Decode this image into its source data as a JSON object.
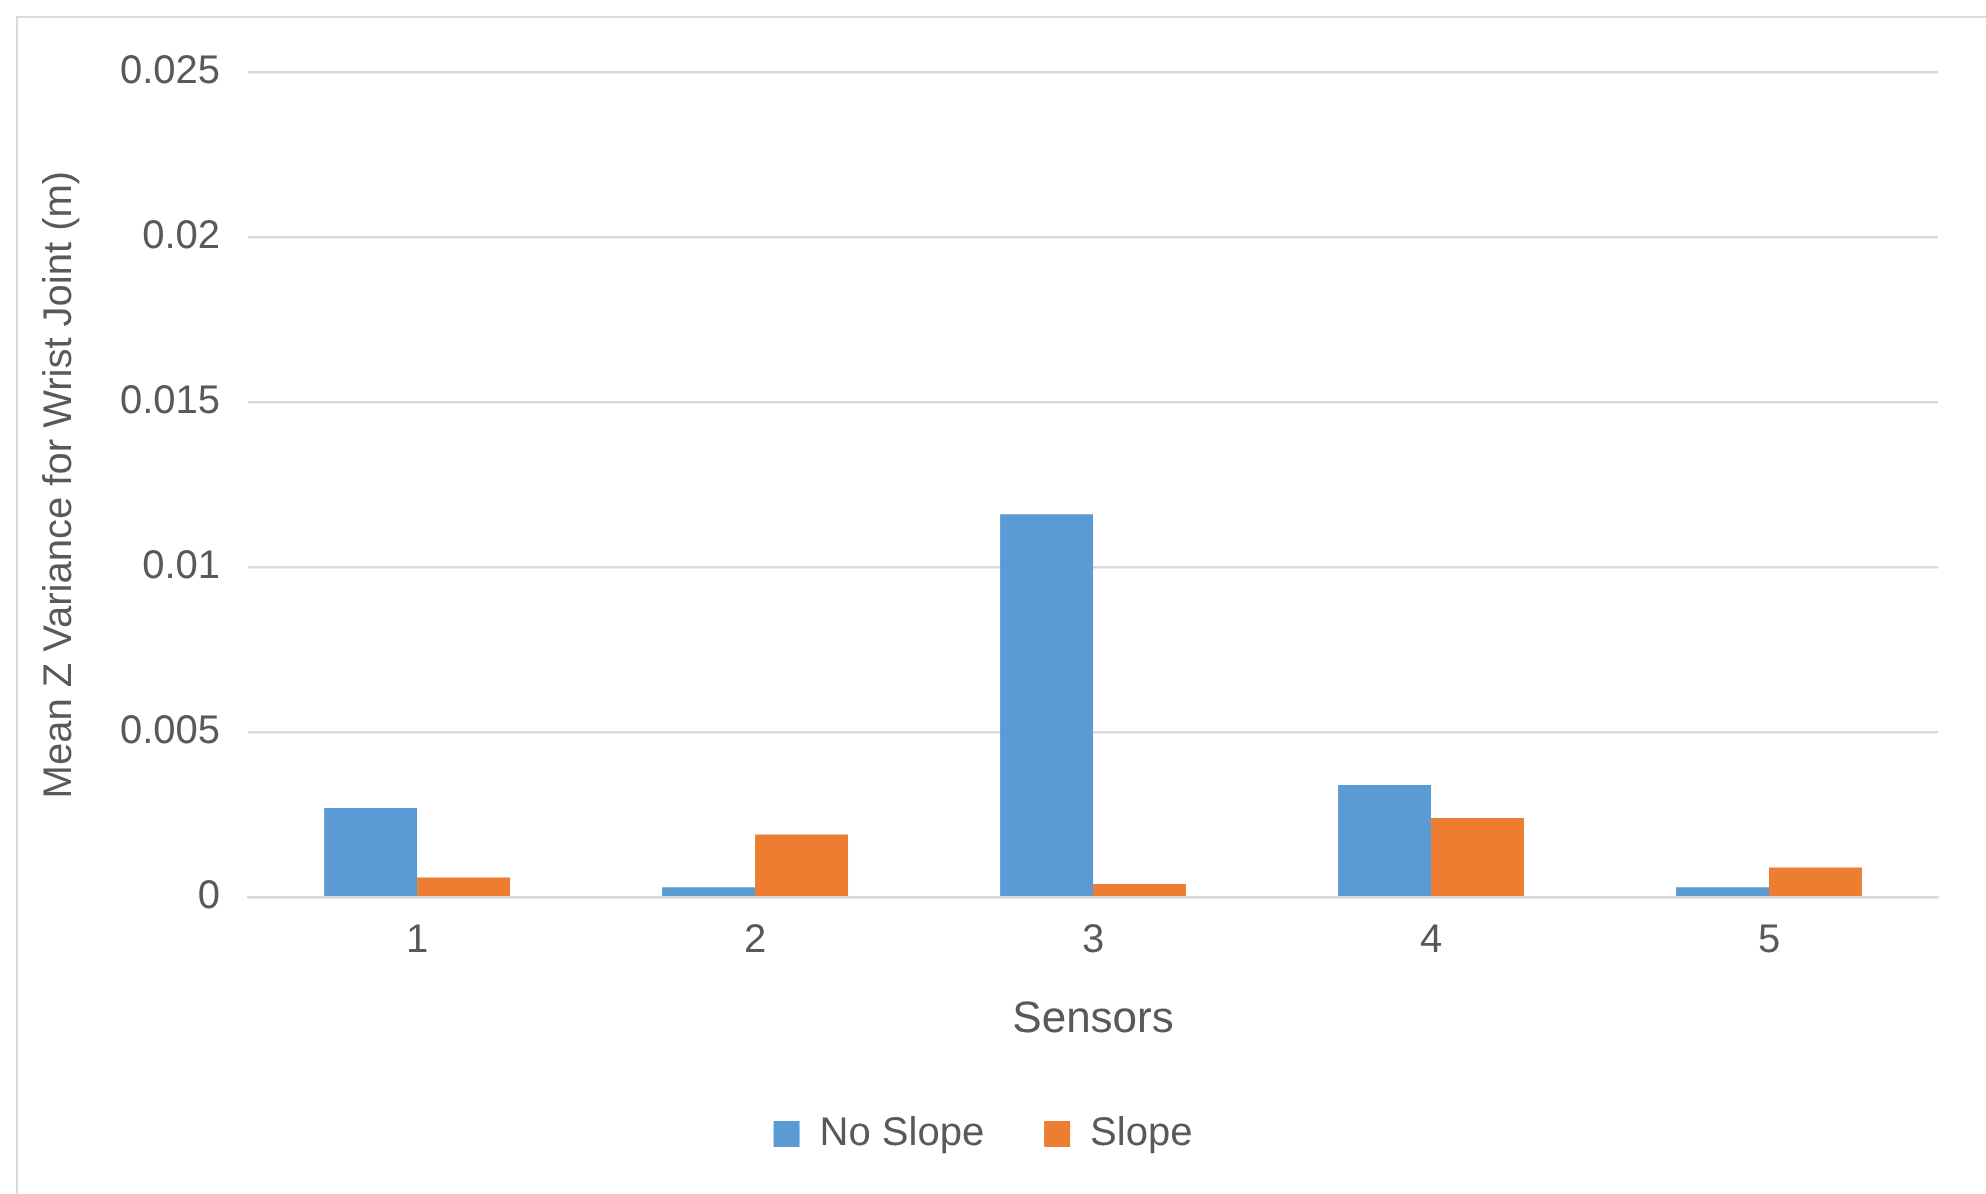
{
  "chart_data": {
    "type": "bar",
    "xlabel": "Sensors",
    "ylabel": "Mean Z Variance for Wrist Joint (m)",
    "categories": [
      "1",
      "2",
      "3",
      "4",
      "5"
    ],
    "series": [
      {
        "name": "No Slope",
        "color": "#5b9bd5",
        "values": [
          0.0027,
          0.0003,
          0.0116,
          0.0034,
          0.0003
        ]
      },
      {
        "name": "Slope",
        "color": "#ed7d31",
        "values": [
          0.0006,
          0.0019,
          0.0004,
          0.0024,
          0.0009
        ]
      }
    ],
    "ylim": [
      0,
      0.025
    ],
    "yticks": [
      0,
      0.005,
      0.01,
      0.015,
      0.02,
      0.025
    ],
    "grid": "y",
    "legend": "bottom"
  }
}
